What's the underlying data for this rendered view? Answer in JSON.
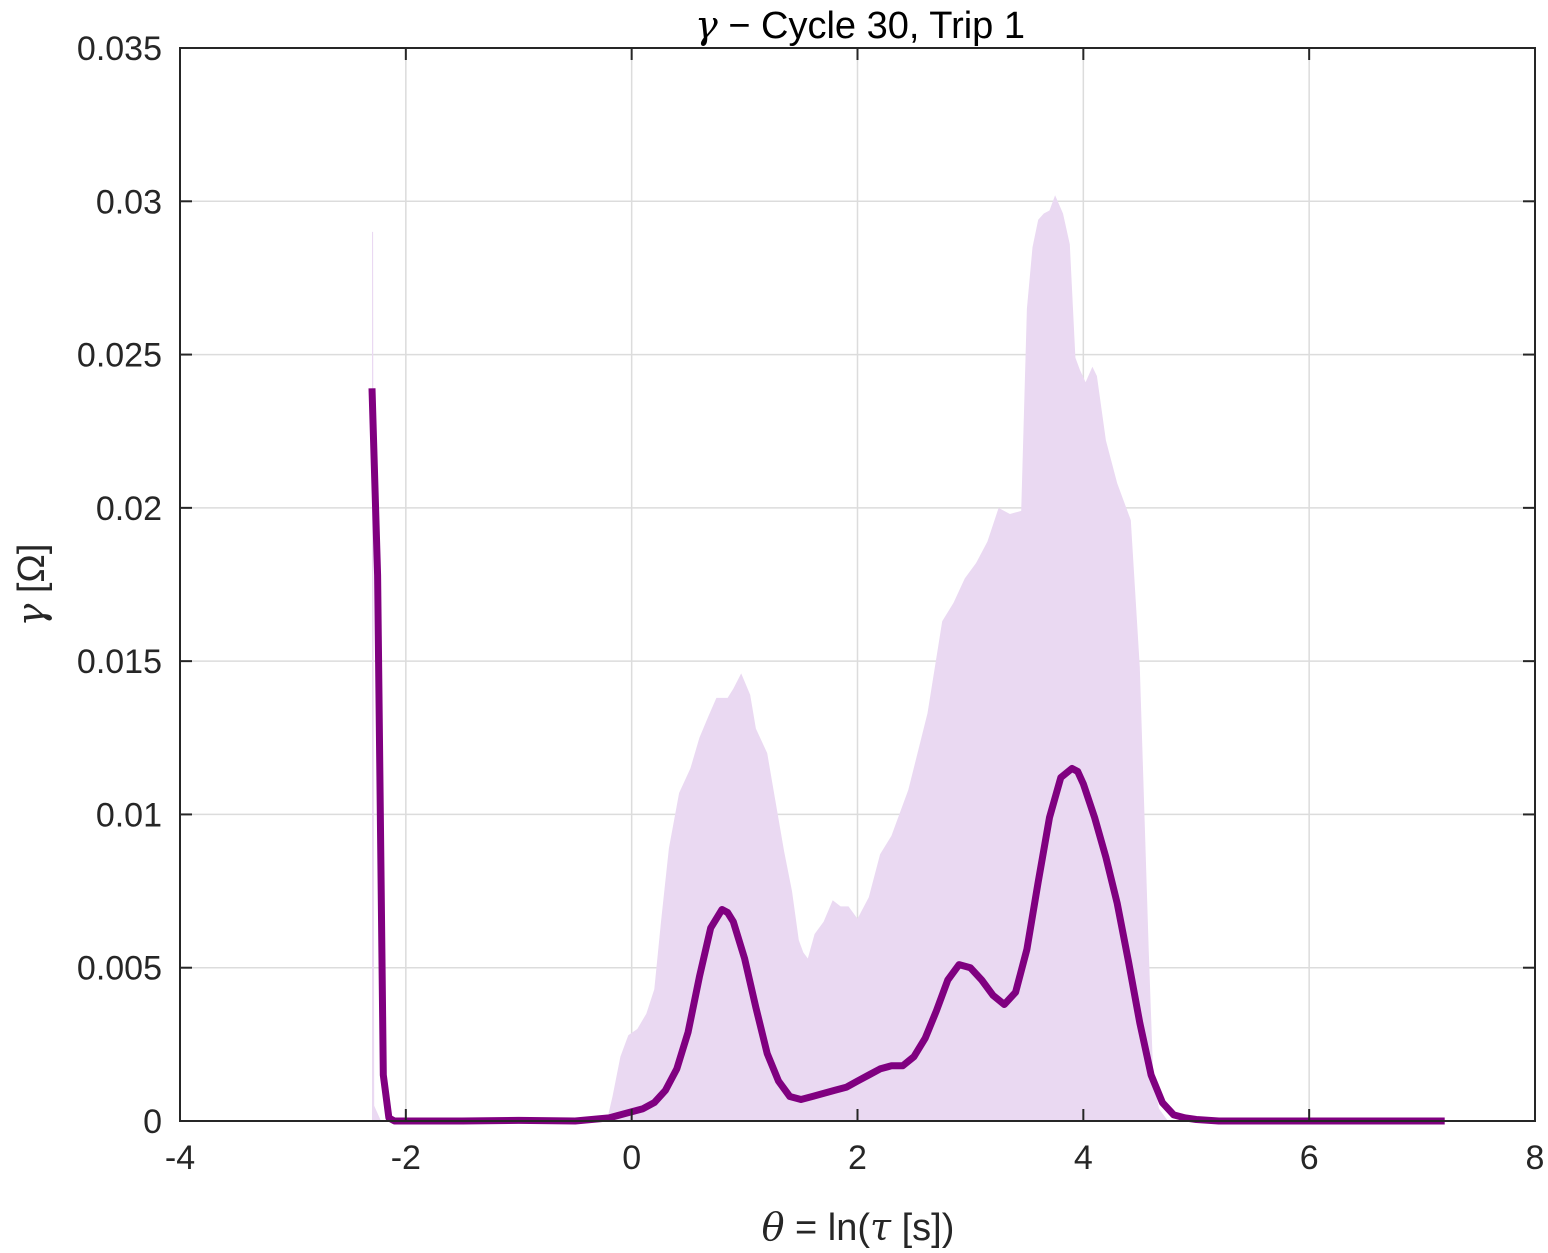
{
  "chart_data": {
    "type": "line",
    "title": {
      "greek": "γ",
      "rest": " − Cycle 30, Trip 1"
    },
    "xlabel": {
      "sym": "θ",
      "mid": " = ln(",
      "sym2": "τ",
      "end": " [s])"
    },
    "ylabel": {
      "sym": "γ",
      "rest": " [Ω]"
    },
    "xlim": [
      -4,
      8
    ],
    "ylim": [
      0,
      0.035
    ],
    "xticks": [
      -4,
      -2,
      0,
      2,
      4,
      6,
      8
    ],
    "xtick_labels": [
      "-4",
      "-2",
      "0",
      "2",
      "4",
      "6",
      "8"
    ],
    "yticks": [
      0,
      0.005,
      0.01,
      0.015,
      0.02,
      0.025,
      0.03,
      0.035
    ],
    "ytick_labels": [
      "0",
      "0.005",
      "0.01",
      "0.015",
      "0.02",
      "0.025",
      "0.03",
      "0.035"
    ],
    "grid": true,
    "colors": {
      "line": "#800080",
      "band": "#ead9f2",
      "grid": "#dcdcdc",
      "axes": "#262626"
    },
    "series": [
      {
        "type": "line",
        "x": [
          -2.3,
          -2.25,
          -2.2,
          -2.15,
          -2.1,
          -2.0,
          -1.5,
          -1.0,
          -0.5,
          -0.2,
          0.0,
          0.1,
          0.2,
          0.3,
          0.4,
          0.5,
          0.6,
          0.7,
          0.8,
          0.85,
          0.9,
          1.0,
          1.1,
          1.2,
          1.3,
          1.4,
          1.5,
          1.6,
          1.7,
          1.8,
          1.9,
          2.0,
          2.1,
          2.2,
          2.3,
          2.4,
          2.5,
          2.6,
          2.7,
          2.8,
          2.9,
          3.0,
          3.1,
          3.2,
          3.3,
          3.4,
          3.5,
          3.6,
          3.7,
          3.8,
          3.9,
          3.95,
          4.0,
          4.1,
          4.2,
          4.3,
          4.4,
          4.5,
          4.6,
          4.7,
          4.8,
          4.9,
          5.0,
          5.2,
          5.5,
          6.0,
          6.5,
          7.0,
          7.2
        ],
        "y": [
          0.0239,
          0.0178,
          0.0015,
          0.0001,
          0.0,
          0.0,
          0.0,
          2e-05,
          0.0,
          0.0001,
          0.0003,
          0.0004,
          0.0006,
          0.001,
          0.0017,
          0.0029,
          0.0047,
          0.0063,
          0.0069,
          0.0068,
          0.0065,
          0.0053,
          0.0037,
          0.0022,
          0.0013,
          0.0008,
          0.0007,
          0.0008,
          0.0009,
          0.001,
          0.0011,
          0.0013,
          0.0015,
          0.0017,
          0.0018,
          0.0018,
          0.0021,
          0.0027,
          0.0036,
          0.0046,
          0.0051,
          0.005,
          0.0046,
          0.0041,
          0.0038,
          0.0042,
          0.0056,
          0.0078,
          0.0099,
          0.0112,
          0.0115,
          0.0114,
          0.011,
          0.0099,
          0.0086,
          0.0071,
          0.0052,
          0.0032,
          0.0015,
          0.0006,
          0.0002,
          0.0001,
          5e-05,
          0.0,
          0.0,
          0.0,
          0.0,
          0.0,
          0.0
        ]
      },
      {
        "type": "area",
        "x": [
          -2.3,
          -2.29,
          -2.28,
          -2.22,
          -0.22,
          -0.17,
          -0.1,
          -0.03,
          0.05,
          0.13,
          0.2,
          0.26,
          0.33,
          0.42,
          0.52,
          0.6,
          0.68,
          0.75,
          0.8,
          0.85,
          0.9,
          0.97,
          1.05,
          1.1,
          1.2,
          1.27,
          1.35,
          1.42,
          1.48,
          1.52,
          1.56,
          1.62,
          1.7,
          1.78,
          1.85,
          1.92,
          2.0,
          2.1,
          2.2,
          2.3,
          2.45,
          2.62,
          2.75,
          2.85,
          2.95,
          3.05,
          3.15,
          3.25,
          3.35,
          3.45,
          3.5,
          3.55,
          3.6,
          3.65,
          3.7,
          3.75,
          3.82,
          3.88,
          3.93,
          3.97,
          4.02,
          4.08,
          4.12,
          4.2,
          4.3,
          4.42,
          4.5,
          4.58,
          4.62,
          4.67,
          4.75
        ],
        "y": [
          0.029,
          0.029,
          0.0005,
          0.0,
          0.0,
          0.0008,
          0.0021,
          0.0028,
          0.003,
          0.0035,
          0.0043,
          0.0065,
          0.0089,
          0.0107,
          0.0115,
          0.0125,
          0.0132,
          0.0138,
          0.0138,
          0.0138,
          0.0141,
          0.0146,
          0.0139,
          0.0128,
          0.012,
          0.0105,
          0.0088,
          0.0075,
          0.0059,
          0.0055,
          0.0053,
          0.0061,
          0.0065,
          0.0072,
          0.007,
          0.007,
          0.0066,
          0.0073,
          0.0087,
          0.0093,
          0.0108,
          0.0133,
          0.0163,
          0.0169,
          0.0177,
          0.0182,
          0.0189,
          0.02,
          0.0198,
          0.0199,
          0.0265,
          0.0285,
          0.0294,
          0.0296,
          0.0297,
          0.0302,
          0.0296,
          0.0286,
          0.0249,
          0.0245,
          0.0241,
          0.0246,
          0.0243,
          0.0222,
          0.0208,
          0.0196,
          0.0148,
          0.0055,
          0.0014,
          0.0004,
          0.0
        ]
      }
    ]
  }
}
